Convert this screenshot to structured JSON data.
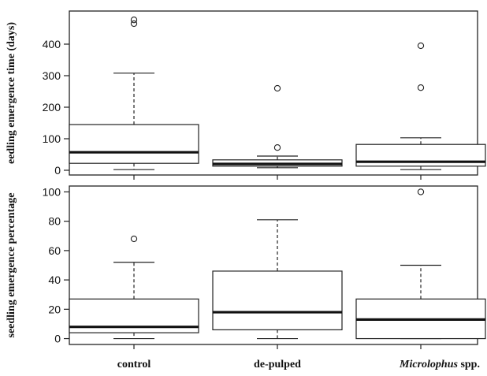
{
  "chart_data": [
    {
      "type": "boxplot",
      "ylabel": "eedling emergence time (days)",
      "ylim": [
        -15,
        505
      ],
      "yticks": [
        0,
        100,
        200,
        300,
        400
      ],
      "categories": [
        "control",
        "de-pulped",
        "Microlophus spp."
      ],
      "boxes": [
        {
          "whisker_low": 2,
          "q1": 22,
          "median": 57,
          "q3": 145,
          "whisker_high": 308,
          "outliers": [
            465,
            477
          ]
        },
        {
          "whisker_low": 8,
          "q1": 13,
          "median": 20,
          "q3": 33,
          "whisker_high": 45,
          "outliers": [
            72,
            260
          ]
        },
        {
          "whisker_low": 2,
          "q1": 13,
          "median": 27,
          "q3": 82,
          "whisker_high": 103,
          "outliers": [
            262,
            395
          ]
        }
      ]
    },
    {
      "type": "boxplot",
      "ylabel": "seedling emergence percentage",
      "ylim": [
        -4,
        104
      ],
      "yticks": [
        0,
        20,
        40,
        60,
        80,
        100
      ],
      "categories": [
        "control",
        "de-pulped",
        "Microlophus spp."
      ],
      "boxes": [
        {
          "whisker_low": 0,
          "q1": 4,
          "median": 8,
          "q3": 27,
          "whisker_high": 52,
          "outliers": [
            68
          ]
        },
        {
          "whisker_low": 0,
          "q1": 6,
          "median": 18,
          "q3": 46,
          "whisker_high": 81,
          "outliers": []
        },
        {
          "whisker_low": 0,
          "q1": 0,
          "median": 13,
          "q3": 27,
          "whisker_high": 50,
          "outliers": [
            100
          ]
        }
      ]
    }
  ],
  "x_labels": {
    "category_1": "control",
    "category_2": "de-pulped",
    "category_3_italic": "Microlophus",
    "category_3_rest": " spp."
  }
}
